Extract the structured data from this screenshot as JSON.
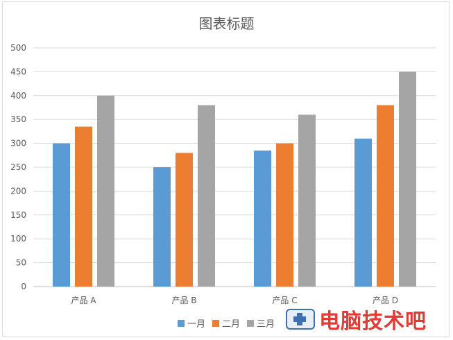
{
  "chart_data": {
    "type": "bar",
    "title": "图表标题",
    "categories": [
      "产品 A",
      "产品 B",
      "产品 C",
      "产品 D"
    ],
    "series": [
      {
        "name": "一月",
        "color": "#5b9bd5",
        "values": [
          300,
          250,
          285,
          310
        ]
      },
      {
        "name": "二月",
        "color": "#ed7d31",
        "values": [
          335,
          280,
          300,
          380
        ]
      },
      {
        "name": "三月",
        "color": "#a5a5a5",
        "values": [
          400,
          380,
          360,
          450
        ]
      }
    ],
    "ylim": [
      0,
      500
    ],
    "yticks": [
      0,
      50,
      100,
      150,
      200,
      250,
      300,
      350,
      400,
      450,
      500
    ],
    "grid": true,
    "legend_position": "bottom"
  },
  "watermark": {
    "text": "电脑技术吧"
  }
}
